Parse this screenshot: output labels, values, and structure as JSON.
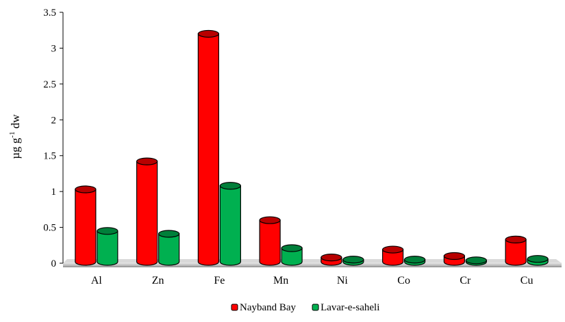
{
  "chart_data": {
    "type": "bar",
    "title": "",
    "xlabel": "",
    "ylabel": "µg g",
    "ylabel_superscript": "-1",
    "ylabel_suffix": " dw",
    "ylim": [
      0,
      3.5
    ],
    "yticks": [
      "0",
      "0.5",
      "1",
      "1.5",
      "2",
      "2.5",
      "3",
      "3.5"
    ],
    "categories": [
      "Al",
      "Zn",
      "Fe",
      "Mn",
      "Ni",
      "Co",
      "Cr",
      "Cu"
    ],
    "series": [
      {
        "name": "Nayband Bay",
        "color": "#ff0000",
        "values": [
          1.03,
          1.42,
          3.2,
          0.6,
          0.08,
          0.19,
          0.1,
          0.33
        ]
      },
      {
        "name": "Lavar-e-saheli",
        "color": "#00b050",
        "values": [
          0.45,
          0.41,
          1.08,
          0.21,
          0.05,
          0.05,
          0.04,
          0.06
        ]
      }
    ],
    "legend_position": "bottom",
    "grid": false,
    "style": "3d-cylinder"
  }
}
